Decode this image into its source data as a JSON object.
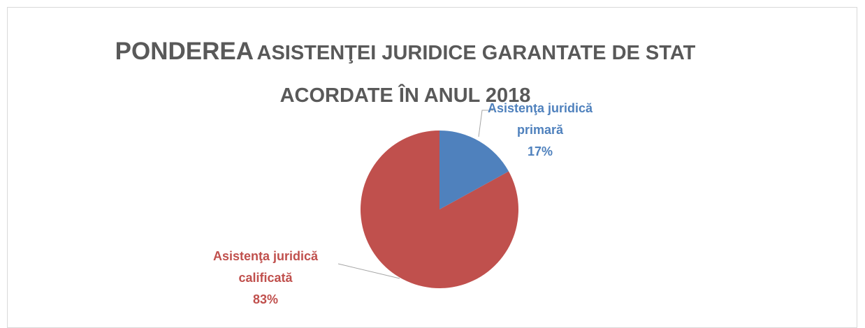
{
  "chart_data": {
    "type": "pie",
    "title": [
      "PONDEREA",
      "ASISTENŢEI JURIDICE GARANTATE DE STAT ACORDATE ÎN ANUL 2018"
    ],
    "categories": [
      "Asistenţa juridică primară",
      "Asistenţa juridică calificată"
    ],
    "values": [
      17,
      83
    ],
    "value_labels": [
      "17%",
      "83%"
    ],
    "colors": [
      "#4f81bd",
      "#c0504d"
    ]
  }
}
